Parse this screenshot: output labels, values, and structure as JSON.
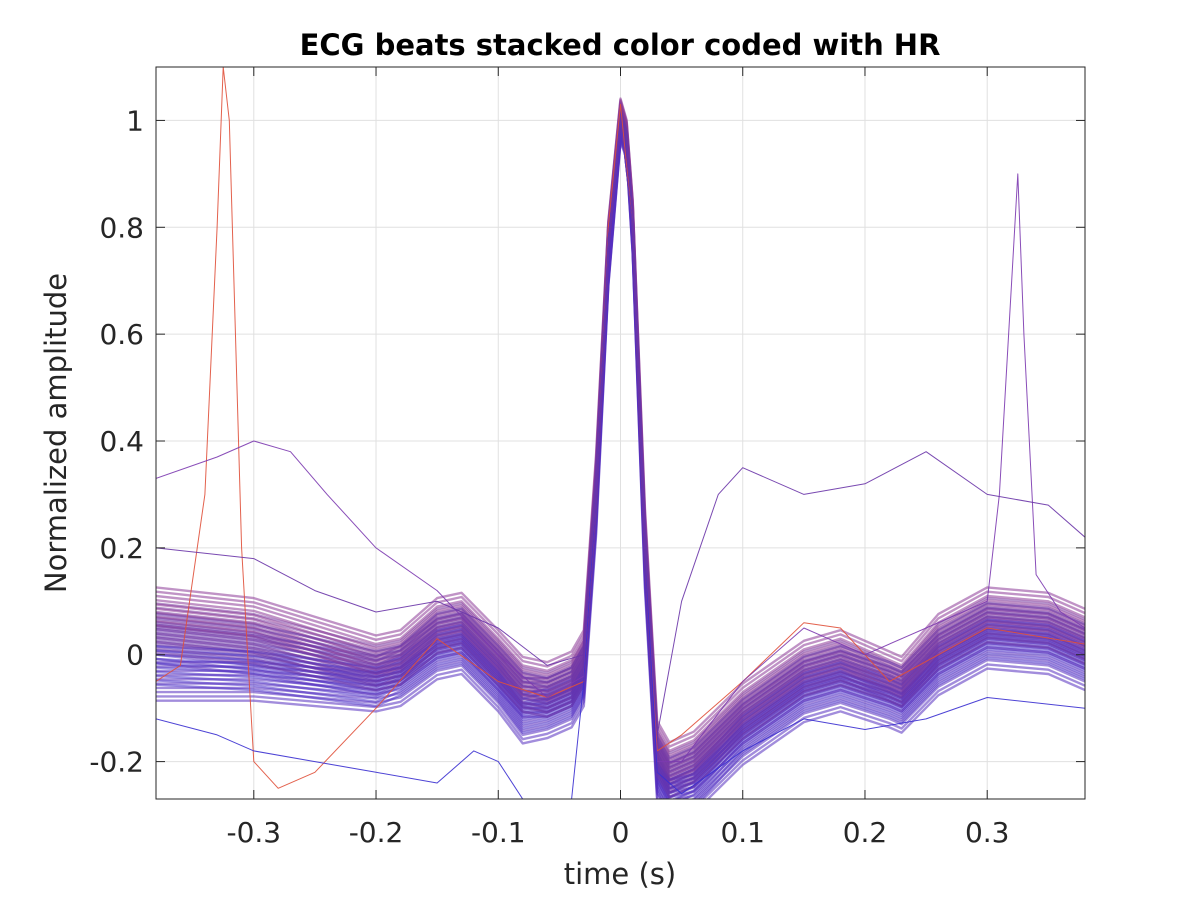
{
  "chart_data": {
    "type": "line",
    "title": "ECG beats stacked color coded with HR",
    "xlabel": "time (s)",
    "ylabel": "Normalized amplitude",
    "xlim": [
      -0.38,
      0.38
    ],
    "ylim": [
      -0.27,
      1.1
    ],
    "xticks": [
      -0.3,
      -0.2,
      -0.1,
      0,
      0.1,
      0.2,
      0.3
    ],
    "xtick_labels": [
      "-0.3",
      "-0.2",
      "-0.1",
      "0",
      "0.1",
      "0.2",
      "0.3"
    ],
    "yticks": [
      -0.2,
      0,
      0.2,
      0.4,
      0.6,
      0.8,
      1
    ],
    "ytick_labels": [
      "-0.2",
      "0",
      "0.2",
      "0.4",
      "0.6",
      "0.8",
      "1"
    ],
    "grid": true,
    "colors": {
      "low_hr": "#3a2fd0",
      "mid_hr": "#6a35a8",
      "high_hr": "#e0503a",
      "axis": "#262626",
      "grid": "#e0e0e0"
    },
    "series": [
      {
        "color": "#5a32b8",
        "x": [
          -0.38,
          -0.3,
          -0.2,
          -0.18,
          -0.15,
          -0.13,
          -0.1,
          -0.08,
          -0.06,
          -0.04,
          -0.03,
          -0.02,
          -0.01,
          0,
          0.005,
          0.01,
          0.02,
          0.03,
          0.04,
          0.06,
          0.1,
          0.15,
          0.18,
          0.22,
          0.23,
          0.26,
          0.3,
          0.35,
          0.38
        ],
        "y": [
          0.02,
          0.0,
          -0.04,
          -0.02,
          0.03,
          0.04,
          -0.03,
          -0.08,
          -0.08,
          -0.06,
          -0.02,
          0.3,
          0.75,
          1.0,
          0.97,
          0.8,
          0.2,
          -0.2,
          -0.24,
          -0.22,
          -0.13,
          -0.05,
          -0.03,
          -0.06,
          -0.07,
          0.0,
          0.05,
          0.04,
          0.01
        ]
      },
      {
        "color": "#7a3aa0",
        "x": [
          -0.38,
          -0.3,
          -0.2,
          -0.18,
          -0.15,
          -0.13,
          -0.1,
          -0.08,
          -0.06,
          -0.04,
          -0.03,
          -0.02,
          -0.01,
          0,
          0.005,
          0.01,
          0.02,
          0.03,
          0.04,
          0.06,
          0.1,
          0.15,
          0.18,
          0.22,
          0.23,
          0.26,
          0.3,
          0.35,
          0.38
        ],
        "y": [
          0.06,
          0.04,
          -0.02,
          -0.01,
          0.05,
          0.06,
          -0.01,
          -0.06,
          -0.07,
          -0.05,
          -0.01,
          0.32,
          0.78,
          1.02,
          0.98,
          0.82,
          0.22,
          -0.18,
          -0.22,
          -0.2,
          -0.11,
          -0.03,
          -0.01,
          -0.05,
          -0.06,
          0.02,
          0.07,
          0.06,
          0.03
        ]
      },
      {
        "color": "#4a30c8",
        "x": [
          -0.38,
          -0.3,
          -0.2,
          -0.18,
          -0.15,
          -0.13,
          -0.1,
          -0.08,
          -0.06,
          -0.04,
          -0.03,
          -0.02,
          -0.01,
          0,
          0.005,
          0.01,
          0.02,
          0.03,
          0.04,
          0.06,
          0.1,
          0.15,
          0.18,
          0.22,
          0.23,
          0.26,
          0.3,
          0.35,
          0.38
        ],
        "y": [
          -0.02,
          -0.03,
          -0.06,
          -0.04,
          0.01,
          0.02,
          -0.05,
          -0.11,
          -0.1,
          -0.08,
          -0.04,
          0.28,
          0.72,
          0.98,
          0.95,
          0.78,
          0.18,
          -0.22,
          -0.27,
          -0.25,
          -0.15,
          -0.07,
          -0.05,
          -0.08,
          -0.09,
          -0.02,
          0.03,
          0.02,
          -0.01
        ]
      },
      {
        "color": "#8c3a98",
        "x": [
          -0.38,
          -0.3,
          -0.2,
          -0.18,
          -0.15,
          -0.13,
          -0.1,
          -0.08,
          -0.06,
          -0.04,
          -0.03,
          -0.02,
          -0.01,
          0,
          0.005,
          0.01,
          0.02,
          0.03,
          0.04,
          0.06,
          0.1,
          0.15,
          0.18,
          0.22,
          0.23,
          0.26,
          0.3,
          0.35,
          0.38
        ],
        "y": [
          0.09,
          0.07,
          0.0,
          0.01,
          0.07,
          0.08,
          0.01,
          -0.04,
          -0.05,
          -0.03,
          0.01,
          0.34,
          0.8,
          1.03,
          0.99,
          0.84,
          0.24,
          -0.16,
          -0.2,
          -0.18,
          -0.09,
          -0.01,
          0.01,
          -0.03,
          -0.04,
          0.04,
          0.09,
          0.08,
          0.05
        ]
      },
      {
        "color": "#5530c0",
        "x": [
          -0.38,
          -0.3,
          -0.2,
          -0.18,
          -0.15,
          -0.13,
          -0.1,
          -0.08,
          -0.06,
          -0.04,
          -0.03,
          -0.02,
          -0.01,
          0,
          0.005,
          0.01,
          0.02,
          0.03,
          0.04,
          0.06,
          0.1,
          0.15,
          0.18,
          0.22,
          0.23,
          0.26,
          0.3,
          0.35,
          0.38
        ],
        "y": [
          -0.05,
          -0.05,
          -0.07,
          -0.06,
          -0.01,
          0.0,
          -0.07,
          -0.13,
          -0.12,
          -0.1,
          -0.06,
          0.26,
          0.7,
          0.97,
          0.94,
          0.76,
          0.16,
          -0.24,
          -0.27,
          -0.26,
          -0.17,
          -0.09,
          -0.07,
          -0.1,
          -0.11,
          -0.04,
          0.01,
          0.0,
          -0.03
        ]
      },
      {
        "color": "#6a35a8",
        "x": [
          -0.38,
          -0.3,
          -0.2,
          -0.18,
          -0.15,
          -0.13,
          -0.1,
          -0.08,
          -0.06,
          -0.04,
          -0.03,
          -0.02,
          -0.01,
          0,
          0.005,
          0.01,
          0.02,
          0.03,
          0.04,
          0.06,
          0.1,
          0.15,
          0.18,
          0.22,
          0.23,
          0.26,
          0.3,
          0.35,
          0.38
        ],
        "y": [
          0.04,
          0.02,
          -0.03,
          -0.02,
          0.04,
          0.05,
          -0.02,
          -0.07,
          -0.08,
          -0.06,
          -0.02,
          0.31,
          0.77,
          1.01,
          0.97,
          0.81,
          0.21,
          -0.19,
          -0.23,
          -0.21,
          -0.12,
          -0.04,
          -0.02,
          -0.05,
          -0.06,
          0.01,
          0.06,
          0.05,
          0.02
        ]
      },
      {
        "color": "#e0503a",
        "x": [
          -0.38,
          -0.36,
          -0.34,
          -0.33,
          -0.325,
          -0.32,
          -0.31,
          -0.3,
          -0.28,
          -0.25,
          -0.2,
          -0.15,
          -0.1,
          -0.06,
          -0.03,
          -0.02,
          -0.01,
          0,
          0.01,
          0.02,
          0.03,
          0.05,
          0.1,
          0.15,
          0.18,
          0.22,
          0.3,
          0.38
        ],
        "y": [
          -0.05,
          -0.02,
          0.3,
          0.8,
          1.1,
          1.0,
          0.2,
          -0.2,
          -0.25,
          -0.22,
          -0.1,
          0.03,
          -0.05,
          -0.08,
          -0.05,
          0.3,
          0.8,
          1.03,
          0.8,
          0.2,
          -0.18,
          -0.15,
          -0.05,
          0.06,
          0.05,
          -0.05,
          0.05,
          0.02
        ]
      },
      {
        "color": "#7c3ab0",
        "x": [
          -0.38,
          -0.33,
          -0.3,
          -0.27,
          -0.24,
          -0.2,
          -0.15,
          -0.1,
          -0.06,
          -0.03,
          -0.02,
          -0.01,
          0,
          0.01,
          0.02,
          0.03,
          0.05,
          0.1,
          0.15,
          0.2,
          0.25,
          0.3,
          0.31,
          0.32,
          0.325,
          0.33,
          0.34,
          0.36,
          0.38
        ],
        "y": [
          0.33,
          0.37,
          0.4,
          0.38,
          0.3,
          0.2,
          0.12,
          0.0,
          -0.08,
          -0.04,
          0.3,
          0.78,
          1.0,
          0.8,
          0.2,
          -0.2,
          -0.2,
          -0.05,
          0.05,
          0.0,
          0.05,
          0.1,
          0.3,
          0.7,
          0.9,
          0.6,
          0.15,
          0.08,
          0.05
        ]
      },
      {
        "color": "#3a2fd0",
        "x": [
          -0.38,
          -0.33,
          -0.3,
          -0.25,
          -0.2,
          -0.15,
          -0.12,
          -0.1,
          -0.08,
          -0.06,
          -0.04,
          -0.03,
          -0.02,
          -0.01,
          0,
          0.01,
          0.02,
          0.03,
          0.05,
          0.1,
          0.15,
          0.2,
          0.25,
          0.3,
          0.38
        ],
        "y": [
          -0.12,
          -0.15,
          -0.18,
          -0.2,
          -0.22,
          -0.24,
          -0.18,
          -0.2,
          -0.27,
          -0.27,
          -0.27,
          -0.05,
          0.3,
          0.78,
          1.0,
          0.8,
          0.2,
          -0.22,
          -0.26,
          -0.18,
          -0.12,
          -0.14,
          -0.12,
          -0.08,
          -0.1
        ]
      },
      {
        "color": "#6a35a8",
        "x": [
          -0.38,
          -0.3,
          -0.25,
          -0.2,
          -0.15,
          -0.1,
          -0.06,
          -0.03,
          -0.02,
          -0.01,
          0,
          0.01,
          0.02,
          0.03,
          0.05,
          0.08,
          0.1,
          0.15,
          0.2,
          0.25,
          0.3,
          0.35,
          0.38
        ],
        "y": [
          0.2,
          0.18,
          0.12,
          0.08,
          0.1,
          0.05,
          -0.02,
          0.0,
          0.3,
          0.78,
          1.0,
          0.8,
          0.2,
          -0.15,
          0.1,
          0.3,
          0.35,
          0.3,
          0.32,
          0.38,
          0.3,
          0.28,
          0.22
        ]
      }
    ]
  }
}
